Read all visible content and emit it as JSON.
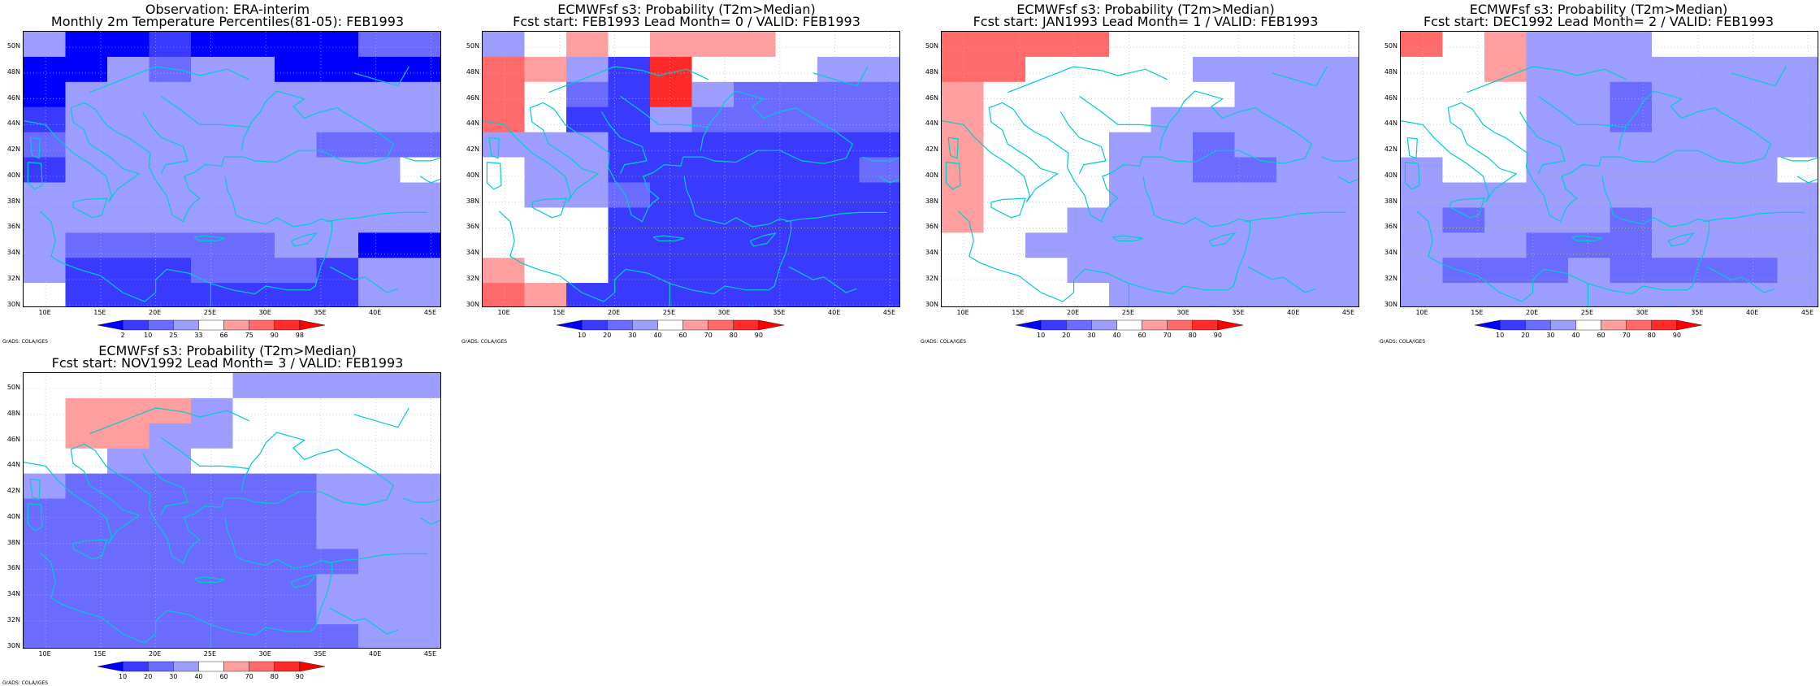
{
  "panels": [
    {
      "title1": "Observation: ERA-interim",
      "title2": "Monthly 2m Temperature Percentiles(81-05): FEB1993",
      "colorbar": {
        "ticks": [
          "2",
          "10",
          "25",
          "33",
          "66",
          "75",
          "90",
          "98"
        ],
        "colors": [
          "#0000ff",
          "#3a3aff",
          "#6b6bff",
          "#9d9dff",
          "#ffffff",
          "#ff9e9e",
          "#ff6b6b",
          "#ff2b2b",
          "#ff0000"
        ]
      },
      "grid": [
        "3001000022",
        "0032330000",
        "0333333333",
        "1333333333",
        "2333333222",
        "1333333334",
        "3333333333",
        "3333333333",
        "3222223300",
        "3111222133",
        "4111111133"
      ]
    },
    {
      "title1": "ECMWFsf s3: Probability (T2m>Median)",
      "title2": "Fcst start: FEB1993  Lead Month= 0 / VALID: FEB1993",
      "colorbar": {
        "ticks": [
          "10",
          "20",
          "30",
          "40",
          "60",
          "70",
          "80",
          "90"
        ],
        "colors": [
          "#0000ff",
          "#3a3aff",
          "#6b6bff",
          "#9d9dff",
          "#ffffff",
          "#ff9e9e",
          "#ff6b6b",
          "#ff2b2b",
          "#ff0000"
        ]
      },
      "grid": [
        "3454555444",
        "6531744433",
        "6421732222",
        "6411322222",
        "3331111111",
        "4331111112",
        "4332111111",
        "4441111111",
        "4441111111",
        "5441111111",
        "6511111111"
      ]
    },
    {
      "title1": "ECMWFsf s3: Probability (T2m>Median)",
      "title2": "Fcst start: JAN1993  Lead Month= 1 / VALID: FEB1993",
      "colorbar": {
        "ticks": [
          "10",
          "20",
          "30",
          "40",
          "60",
          "70",
          "80",
          "90"
        ],
        "colors": [
          "#0000ff",
          "#3a3aff",
          "#6b6bff",
          "#9d9dff",
          "#ffffff",
          "#ff9e9e",
          "#ff6b6b",
          "#ff2b2b",
          "#ff0000"
        ]
      },
      "grid": [
        "6666444444",
        "6644443333",
        "5444444333",
        "5444433333",
        "5444332333",
        "5444332233",
        "5444333333",
        "5443333333",
        "4433333333",
        "4443333333",
        "4444333333"
      ]
    },
    {
      "title1": "ECMWFsf s3: Probability (T2m>Median)",
      "title2": "Fcst start: DEC1992  Lead Month= 2 / VALID: FEB1993",
      "colorbar": {
        "ticks": [
          "10",
          "20",
          "30",
          "40",
          "60",
          "70",
          "80",
          "90"
        ],
        "colors": [
          "#0000ff",
          "#3a3aff",
          "#6b6bff",
          "#9d9dff",
          "#ffffff",
          "#ff9e9e",
          "#ff6b6b",
          "#ff2b2b",
          "#ff0000"
        ]
      },
      "grid": [
        "6453334444",
        "4453333333",
        "4443323333",
        "4443323333",
        "4443333333",
        "3443333334",
        "3333333333",
        "3233323333",
        "3332223333",
        "3222322223",
        "3333333333"
      ]
    },
    {
      "title1": "ECMWFsf s3: Probability (T2m>Median)",
      "title2": "Fcst start: NOV1992  Lead Month= 3 / VALID: FEB1993",
      "colorbar": {
        "ticks": [
          "10",
          "20",
          "30",
          "40",
          "60",
          "70",
          "80",
          "90"
        ],
        "colors": [
          "#0000ff",
          "#3a3aff",
          "#6b6bff",
          "#9d9dff",
          "#ffffff",
          "#ff9e9e",
          "#ff6b6b",
          "#ff2b2b",
          "#ff0000"
        ]
      },
      "grid": [
        "4444433333",
        "4555344444",
        "4553344444",
        "4433444444",
        "3222222333",
        "2222222333",
        "2222222333",
        "2222222233",
        "2222222333",
        "2222222333",
        "2222222233"
      ]
    }
  ],
  "axes": {
    "xlabels": [
      "10E",
      "15E",
      "20E",
      "25E",
      "30E",
      "35E",
      "40E",
      "45E"
    ],
    "ylabels": [
      "50N",
      "48N",
      "46N",
      "44N",
      "42N",
      "40N",
      "38N",
      "36N",
      "34N",
      "32N",
      "30N"
    ]
  },
  "credit": "GrADS: COLA/IGES",
  "colors": {
    "coastline": "#00cccc",
    "gridline": "#bbbbbb"
  }
}
